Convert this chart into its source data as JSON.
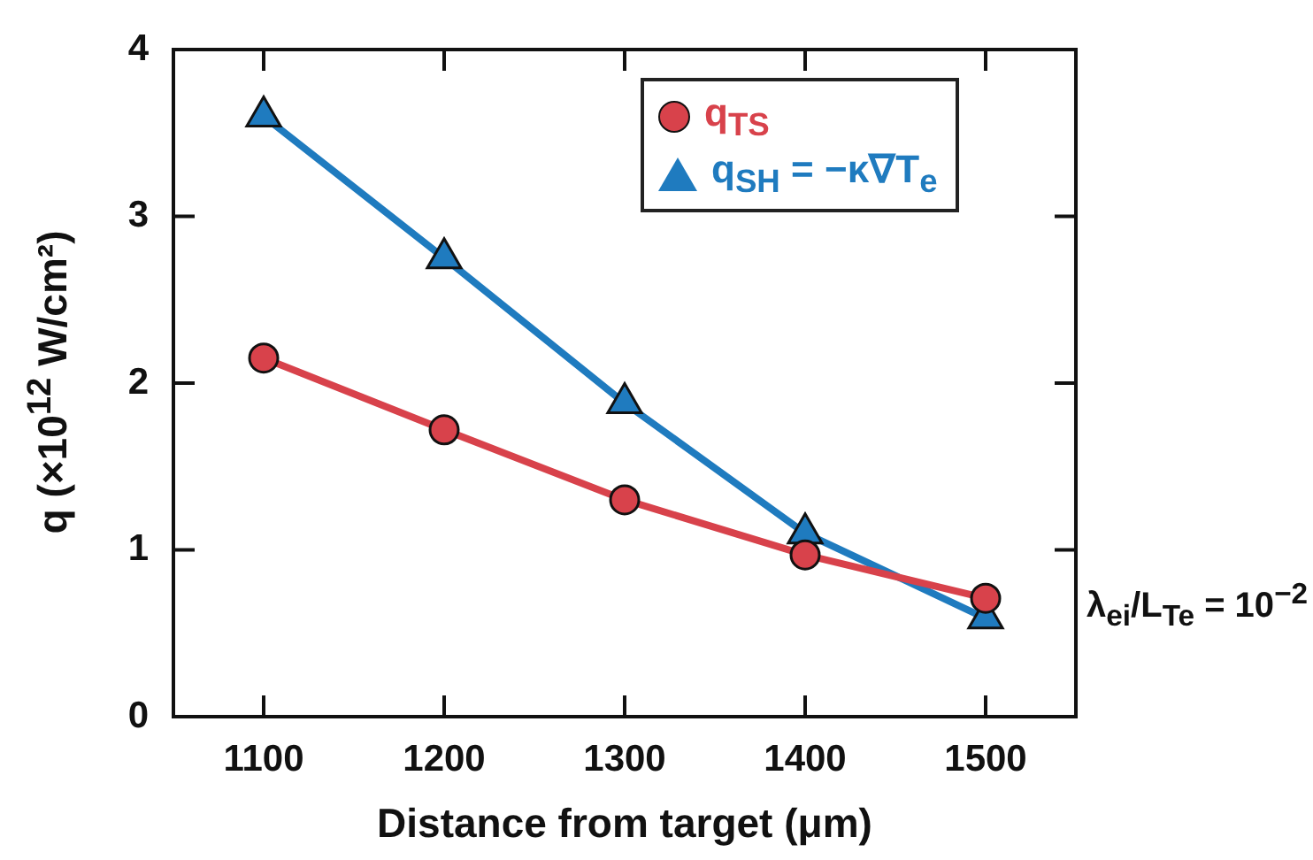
{
  "chart_data": {
    "type": "line",
    "xlabel": "Distance from target (μm)",
    "ylabel": "q (×10$^{12}$ W/cm²)",
    "x": [
      1100,
      1200,
      1300,
      1400,
      1500
    ],
    "series": [
      {
        "name": "q$_{TS}$",
        "color": "#d8424b",
        "marker": "circle",
        "values": [
          2.15,
          1.72,
          1.3,
          0.97,
          0.71
        ]
      },
      {
        "name": "q$_{SH}$ = −κ∇T$_{e}$",
        "color": "#1f7bbf",
        "marker": "triangle",
        "values": [
          3.6,
          2.75,
          1.88,
          1.1,
          0.59
        ]
      }
    ],
    "xlim": [
      1050,
      1550
    ],
    "xticks": [
      1100,
      1200,
      1300,
      1400,
      1500
    ],
    "ylim": [
      0,
      4
    ],
    "yticks": [
      0,
      1,
      2,
      3,
      4
    ],
    "grid": false,
    "legend": "top right",
    "line_style": "solid",
    "annotations": [
      "λ$_{ei}$/L$_{Te}$ = 10$^{−2}$"
    ]
  }
}
